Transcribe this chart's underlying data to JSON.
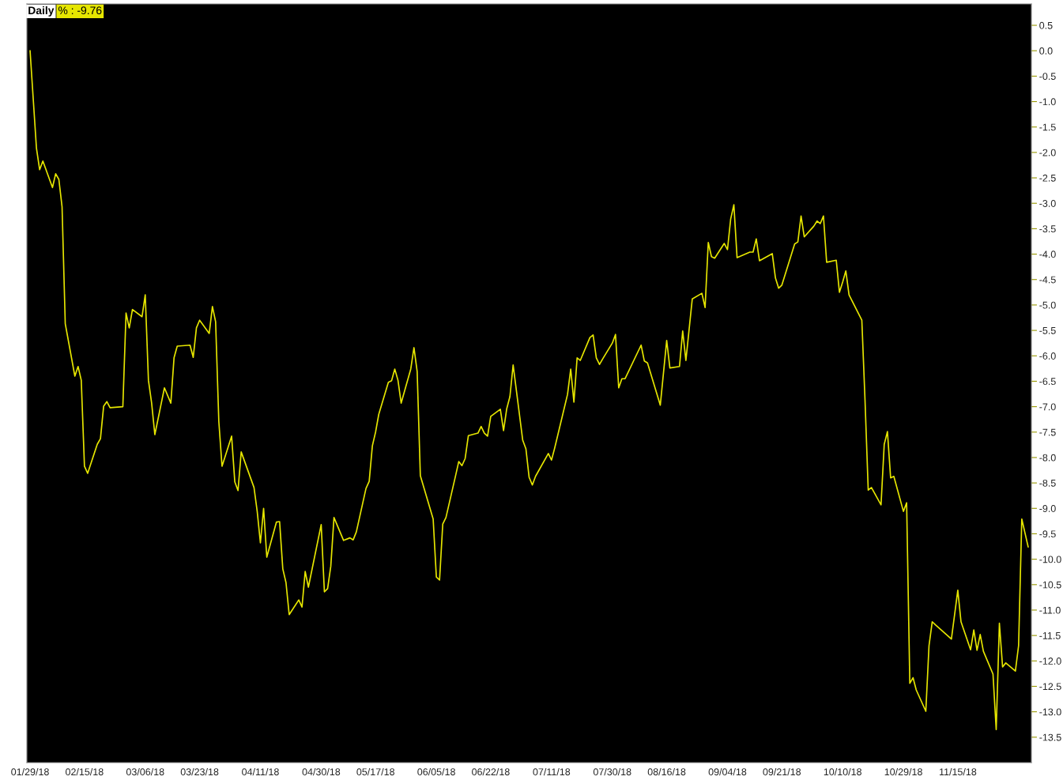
{
  "chart_data": {
    "type": "line",
    "title": "Daily",
    "annotations": [
      "% : -9.76"
    ],
    "x": [
      "2018-01-29",
      "2018-01-31",
      "2018-02-01",
      "2018-02-02",
      "2018-02-05",
      "2018-02-06",
      "2018-02-07",
      "2018-02-08",
      "2018-02-09",
      "2018-02-12",
      "2018-02-13",
      "2018-02-14",
      "2018-02-15",
      "2018-02-16",
      "2018-02-19",
      "2018-02-20",
      "2018-02-21",
      "2018-02-22",
      "2018-02-23",
      "2018-02-27",
      "2018-02-28",
      "2018-03-01",
      "2018-03-02",
      "2018-03-05",
      "2018-03-06",
      "2018-03-07",
      "2018-03-08",
      "2018-03-09",
      "2018-03-12",
      "2018-03-14",
      "2018-03-15",
      "2018-03-16",
      "2018-03-20",
      "2018-03-21",
      "2018-03-22",
      "2018-03-23",
      "2018-03-26",
      "2018-03-27",
      "2018-03-28",
      "2018-03-29",
      "2018-03-30",
      "2018-04-02",
      "2018-04-03",
      "2018-04-04",
      "2018-04-05",
      "2018-04-09",
      "2018-04-10",
      "2018-04-11",
      "2018-04-12",
      "2018-04-13",
      "2018-04-16",
      "2018-04-17",
      "2018-04-18",
      "2018-04-19",
      "2018-04-20",
      "2018-04-23",
      "2018-04-24",
      "2018-04-25",
      "2018-04-26",
      "2018-04-30",
      "2018-05-01",
      "2018-05-02",
      "2018-05-03",
      "2018-05-04",
      "2018-05-07",
      "2018-05-09",
      "2018-05-10",
      "2018-05-11",
      "2018-05-14",
      "2018-05-15",
      "2018-05-16",
      "2018-05-17",
      "2018-05-18",
      "2018-05-21",
      "2018-05-22",
      "2018-05-23",
      "2018-05-24",
      "2018-05-25",
      "2018-05-28",
      "2018-05-29",
      "2018-05-30",
      "2018-05-31",
      "2018-06-04",
      "2018-06-05",
      "2018-06-06",
      "2018-06-07",
      "2018-06-08",
      "2018-06-11",
      "2018-06-12",
      "2018-06-13",
      "2018-06-14",
      "2018-06-15",
      "2018-06-18",
      "2018-06-19",
      "2018-06-20",
      "2018-06-21",
      "2018-06-22",
      "2018-06-25",
      "2018-06-26",
      "2018-06-27",
      "2018-06-28",
      "2018-06-29",
      "2018-07-02",
      "2018-07-03",
      "2018-07-04",
      "2018-07-05",
      "2018-07-06",
      "2018-07-10",
      "2018-07-11",
      "2018-07-12",
      "2018-07-16",
      "2018-07-17",
      "2018-07-18",
      "2018-07-19",
      "2018-07-20",
      "2018-07-23",
      "2018-07-24",
      "2018-07-25",
      "2018-07-26",
      "2018-07-27",
      "2018-07-30",
      "2018-07-31",
      "2018-08-01",
      "2018-08-02",
      "2018-08-03",
      "2018-08-08",
      "2018-08-09",
      "2018-08-10",
      "2018-08-14",
      "2018-08-16",
      "2018-08-17",
      "2018-08-20",
      "2018-08-21",
      "2018-08-22",
      "2018-08-24",
      "2018-08-27",
      "2018-08-28",
      "2018-08-29",
      "2018-08-30",
      "2018-08-31",
      "2018-09-03",
      "2018-09-04",
      "2018-09-05",
      "2018-09-06",
      "2018-09-07",
      "2018-09-11",
      "2018-09-12",
      "2018-09-13",
      "2018-09-14",
      "2018-09-18",
      "2018-09-19",
      "2018-09-20",
      "2018-09-21",
      "2018-09-25",
      "2018-09-26",
      "2018-09-27",
      "2018-09-28",
      "2018-10-01",
      "2018-10-02",
      "2018-10-03",
      "2018-10-04",
      "2018-10-05",
      "2018-10-08",
      "2018-10-09",
      "2018-10-10",
      "2018-10-11",
      "2018-10-12",
      "2018-10-16",
      "2018-10-17",
      "2018-10-18",
      "2018-10-19",
      "2018-10-22",
      "2018-10-23",
      "2018-10-24",
      "2018-10-25",
      "2018-10-26",
      "2018-10-29",
      "2018-10-30",
      "2018-10-31",
      "2018-11-01",
      "2018-11-02",
      "2018-11-05",
      "2018-11-06",
      "2018-11-07",
      "2018-11-08",
      "2018-11-13",
      "2018-11-15",
      "2018-11-16",
      "2018-11-19",
      "2018-11-20",
      "2018-11-21",
      "2018-11-22",
      "2018-11-23",
      "2018-11-26",
      "2018-11-27",
      "2018-11-28",
      "2018-11-29",
      "2018-11-30",
      "2018-12-03",
      "2018-12-04",
      "2018-12-05",
      "2018-12-07"
    ],
    "series": [
      {
        "color": "#e6e600",
        "values": [
          0.0,
          -1.92,
          -2.34,
          -2.17,
          -2.69,
          -2.42,
          -2.53,
          -3.07,
          -5.37,
          -6.4,
          -6.21,
          -6.48,
          -8.17,
          -8.31,
          -7.74,
          -7.63,
          -6.99,
          -6.9,
          -7.02,
          -7.0,
          -5.16,
          -5.45,
          -5.09,
          -5.23,
          -4.8,
          -6.48,
          -6.93,
          -7.55,
          -6.63,
          -6.93,
          -6.04,
          -5.81,
          -5.79,
          -6.03,
          -5.45,
          -5.3,
          -5.56,
          -5.03,
          -5.33,
          -7.29,
          -8.17,
          -7.58,
          -8.48,
          -8.65,
          -7.89,
          -8.59,
          -9.06,
          -9.68,
          -9.0,
          -9.96,
          -9.27,
          -9.26,
          -10.19,
          -10.46,
          -11.09,
          -10.8,
          -10.94,
          -10.24,
          -10.55,
          -9.32,
          -10.64,
          -10.58,
          -10.14,
          -9.18,
          -9.63,
          -9.58,
          -9.62,
          -9.46,
          -8.61,
          -8.47,
          -7.77,
          -7.5,
          -7.15,
          -6.52,
          -6.49,
          -6.26,
          -6.48,
          -6.93,
          -6.26,
          -5.84,
          -6.31,
          -8.36,
          -9.21,
          -10.35,
          -10.41,
          -9.31,
          -9.18,
          -8.36,
          -8.08,
          -8.16,
          -8.02,
          -7.57,
          -7.52,
          -7.39,
          -7.52,
          -7.58,
          -7.19,
          -7.05,
          -7.47,
          -7.04,
          -6.8,
          -6.18,
          -7.66,
          -7.83,
          -8.39,
          -8.54,
          -8.37,
          -7.92,
          -8.05,
          -7.81,
          -6.76,
          -6.26,
          -6.91,
          -6.04,
          -6.09,
          -5.64,
          -5.59,
          -6.04,
          -6.17,
          -6.06,
          -5.75,
          -5.58,
          -6.63,
          -6.45,
          -6.45,
          -5.79,
          -6.1,
          -6.14,
          -6.97,
          -5.7,
          -6.24,
          -6.21,
          -5.51,
          -6.09,
          -4.88,
          -4.77,
          -5.05,
          -3.77,
          -4.05,
          -4.08,
          -3.79,
          -3.91,
          -3.31,
          -3.03,
          -4.07,
          -3.96,
          -3.96,
          -3.7,
          -4.13,
          -3.99,
          -4.47,
          -4.67,
          -4.61,
          -3.8,
          -3.76,
          -3.25,
          -3.66,
          -3.45,
          -3.35,
          -3.4,
          -3.25,
          -4.16,
          -4.12,
          -4.75,
          -4.55,
          -4.33,
          -4.8,
          -5.3,
          -6.88,
          -8.64,
          -8.59,
          -8.93,
          -7.74,
          -7.49,
          -8.4,
          -8.37,
          -9.06,
          -8.89,
          -12.44,
          -12.33,
          -12.57,
          -12.99,
          -11.7,
          -11.23,
          -11.29,
          -11.57,
          -10.61,
          -11.23,
          -11.78,
          -11.39,
          -11.79,
          -11.48,
          -11.81,
          -12.26,
          -13.35,
          -11.26,
          -12.12,
          -12.04,
          -12.2,
          -11.7,
          -9.21,
          -9.76
        ]
      }
    ],
    "xlim": [
      "2018-01-28",
      "2018-12-08"
    ],
    "xticks": [
      {
        "value": "2018-01-29",
        "label": "01/29/18"
      },
      {
        "value": "2018-02-15",
        "label": "02/15/18"
      },
      {
        "value": "2018-03-06",
        "label": "03/06/18"
      },
      {
        "value": "2018-03-23",
        "label": "03/23/18"
      },
      {
        "value": "2018-04-11",
        "label": "04/11/18"
      },
      {
        "value": "2018-04-30",
        "label": "04/30/18"
      },
      {
        "value": "2018-05-17",
        "label": "05/17/18"
      },
      {
        "value": "2018-06-05",
        "label": "06/05/18"
      },
      {
        "value": "2018-06-22",
        "label": "06/22/18"
      },
      {
        "value": "2018-07-11",
        "label": "07/11/18"
      },
      {
        "value": "2018-07-30",
        "label": "07/30/18"
      },
      {
        "value": "2018-08-16",
        "label": "08/16/18"
      },
      {
        "value": "2018-09-04",
        "label": "09/04/18"
      },
      {
        "value": "2018-09-21",
        "label": "09/21/18"
      },
      {
        "value": "2018-10-10",
        "label": "10/10/18"
      },
      {
        "value": "2018-10-29",
        "label": "10/29/18"
      },
      {
        "value": "2018-11-15",
        "label": "11/15/18"
      }
    ],
    "ylim": [
      -14.0,
      0.92
    ],
    "yticks": [
      0.5,
      {
        "value": 0,
        "label": "0.0"
      },
      -0.5,
      {
        "value": -1,
        "label": "-1.0"
      },
      -1.5,
      {
        "value": -2,
        "label": "-2.0"
      },
      -2.5,
      {
        "value": -3,
        "label": "-3.0"
      },
      -3.5,
      {
        "value": -4,
        "label": "-4.0"
      },
      -4.5,
      {
        "value": -5,
        "label": "-5.0"
      },
      -5.5,
      {
        "value": -6,
        "label": "-6.0"
      },
      -6.5,
      {
        "value": -7,
        "label": "-7.0"
      },
      -7.5,
      {
        "value": -8,
        "label": "-8.0"
      },
      -8.5,
      {
        "value": -9,
        "label": "-9.0"
      },
      -9.5,
      {
        "value": -10,
        "label": "-10.0"
      },
      -10.5,
      {
        "value": -11,
        "label": "-11.0"
      },
      -11.5,
      {
        "value": -12,
        "label": "-12.0"
      },
      -12.5,
      {
        "value": -13,
        "label": "-13.0"
      },
      -13.5
    ],
    "grid": false,
    "legend": false,
    "line_style": "solid"
  }
}
